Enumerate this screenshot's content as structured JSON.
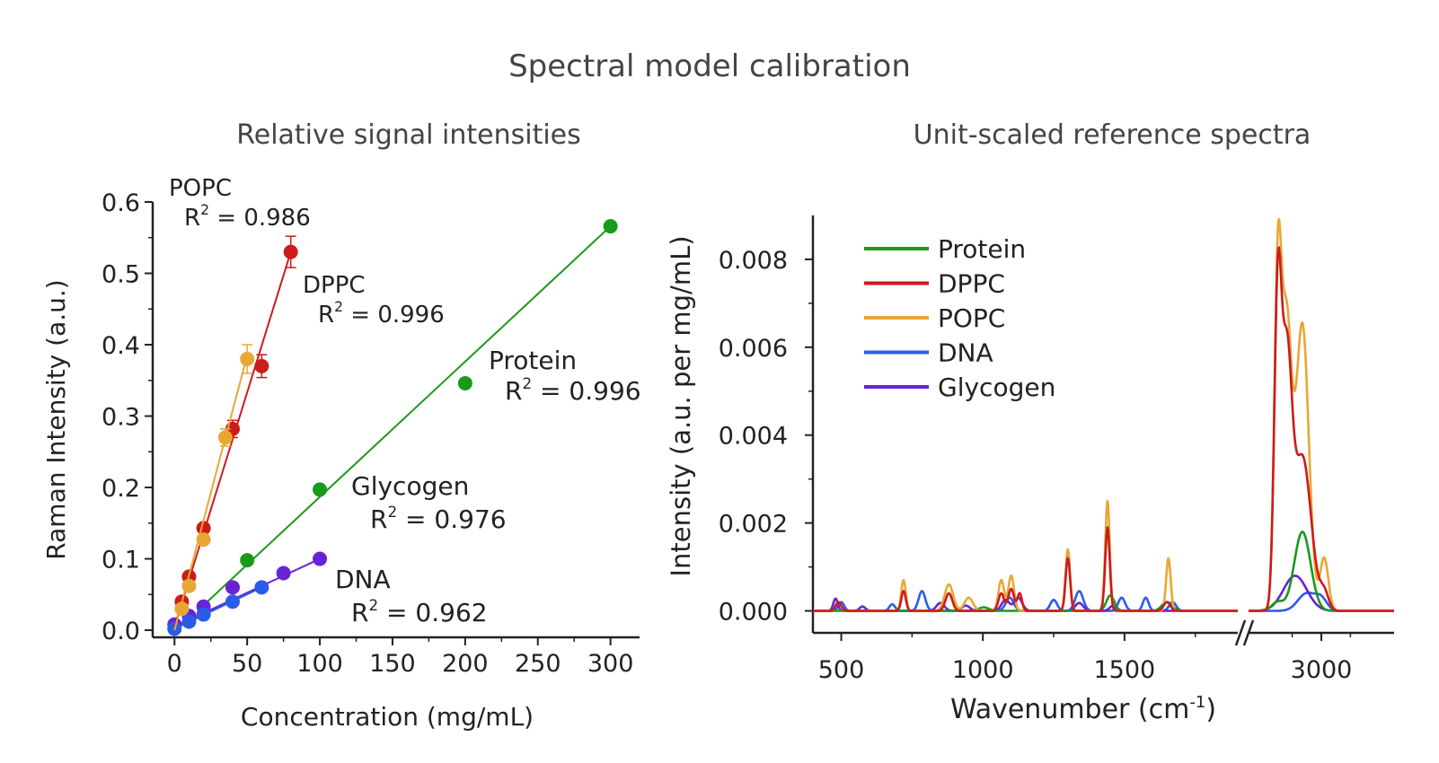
{
  "figure": {
    "title": "Spectral model calibration"
  },
  "chart_data": [
    {
      "type": "scatter",
      "title": "Relative signal intensities",
      "xlabel": "Concentration (mg/mL)",
      "ylabel": "Raman Intensity (a.u.)",
      "xlim": [
        -15,
        320
      ],
      "ylim": [
        -0.01,
        0.6
      ],
      "xticks": [
        "0",
        "50",
        "100",
        "150",
        "200",
        "250",
        "300"
      ],
      "xtick_values": [
        0,
        50,
        100,
        150,
        200,
        250,
        300
      ],
      "yticks": [
        "0.0",
        "0.1",
        "0.2",
        "0.3",
        "0.4",
        "0.5",
        "0.6"
      ],
      "ytick_values": [
        0,
        0.1,
        0.2,
        0.3,
        0.4,
        0.5,
        0.6
      ],
      "series": [
        {
          "name": "POPC",
          "color": "#e8a735",
          "r2_label": "R",
          "r2_sup": "2",
          "r2_text": " = 0.986",
          "x": [
            5,
            10,
            20,
            35,
            50
          ],
          "y": [
            0.03,
            0.062,
            0.127,
            0.27,
            0.38
          ],
          "err": [
            0,
            0,
            0,
            0.012,
            0.02
          ],
          "fit": [
            [
              0,
              0
            ],
            [
              50,
              0.385
            ]
          ]
        },
        {
          "name": "DPPC",
          "color": "#cc1b1b",
          "r2_label": "R",
          "r2_sup": "2",
          "r2_text": " = 0.996",
          "x": [
            5,
            10,
            20,
            40,
            60,
            80
          ],
          "y": [
            0.04,
            0.075,
            0.143,
            0.282,
            0.37,
            0.53
          ],
          "err": [
            0,
            0,
            0,
            0.012,
            0.016,
            0.022
          ],
          "fit": [
            [
              0,
              0.005
            ],
            [
              80,
              0.53
            ]
          ]
        },
        {
          "name": "Protein",
          "color": "#1a9a1a",
          "r2_label": "R",
          "r2_sup": "2",
          "r2_text": " = 0.996",
          "x": [
            50,
            100,
            200,
            300
          ],
          "y": [
            0.098,
            0.197,
            0.346,
            0.566
          ],
          "err": [
            0,
            0,
            0,
            0
          ],
          "fit": [
            [
              20,
              0.035
            ],
            [
              300,
              0.566
            ]
          ]
        },
        {
          "name": "Glycogen",
          "color": "#6a22d6",
          "r2_label": "R",
          "r2_sup": "2",
          "r2_text": " = 0.976",
          "x": [
            0,
            10,
            20,
            40,
            75,
            100
          ],
          "y": [
            0.008,
            0.02,
            0.033,
            0.06,
            0.08,
            0.1
          ],
          "err": [
            0,
            0,
            0,
            0,
            0,
            0
          ],
          "fit": [
            [
              0,
              0.005
            ],
            [
              100,
              0.1
            ]
          ]
        },
        {
          "name": "DNA",
          "color": "#2b5ce8",
          "r2_label": "R",
          "r2_sup": "2",
          "r2_text": " = 0.962",
          "x": [
            0,
            10,
            20,
            40,
            60
          ],
          "y": [
            0.002,
            0.012,
            0.022,
            0.04,
            0.06
          ],
          "err": [
            0,
            0,
            0,
            0,
            0
          ],
          "fit": [
            [
              0,
              0.002
            ],
            [
              60,
              0.06
            ]
          ]
        }
      ]
    },
    {
      "type": "line",
      "title": "Unit-scaled reference spectra",
      "xlabel": "Wavenumber (cm",
      "xlabel_sup": "-1",
      "xlabel_end": ")",
      "ylabel": "Intensity (a.u. per mg/mL)",
      "ylim": [
        -0.0005,
        0.009
      ],
      "xticks": [
        "500",
        "1000",
        "1500",
        "3000"
      ],
      "xtick_values": [
        500,
        1000,
        1500,
        3000
      ],
      "yticks": [
        "0.000",
        "0.002",
        "0.004",
        "0.006",
        "0.008"
      ],
      "ytick_values": [
        0,
        0.002,
        0.004,
        0.006,
        0.008
      ],
      "segments": [
        [
          400,
          1900
        ],
        [
          2750,
          3250
        ]
      ],
      "legend_position": "top-left",
      "series": [
        {
          "name": "Protein",
          "color": "#1a9a1a",
          "peaks": [
            [
              1003,
              8e-05,
              18
            ],
            [
              1450,
              0.00035,
              14
            ],
            [
              1650,
              0.0002,
              18
            ],
            [
              2850,
              0.0002,
              20
            ],
            [
              2935,
              0.0018,
              28
            ]
          ]
        },
        {
          "name": "DPPC",
          "color": "#cc1b1b",
          "peaks": [
            [
              490,
              0.0002,
              10
            ],
            [
              720,
              0.00045,
              8
            ],
            [
              880,
              0.0004,
              12
            ],
            [
              1065,
              0.0004,
              10
            ],
            [
              1100,
              0.0005,
              10
            ],
            [
              1130,
              0.0004,
              8
            ],
            [
              1300,
              0.0012,
              8
            ],
            [
              1440,
              0.0019,
              8
            ],
            [
              1650,
              0.0002,
              12
            ],
            [
              2725,
              0.0003,
              8
            ],
            [
              2850,
              0.0066,
              12
            ],
            [
              2880,
              0.0055,
              18
            ],
            [
              2935,
              0.0035,
              30
            ],
            [
              3010,
              0.0004,
              15
            ]
          ]
        },
        {
          "name": "POPC",
          "color": "#e8a735",
          "peaks": [
            [
              490,
              0.0002,
              10
            ],
            [
              720,
              0.0007,
              8
            ],
            [
              880,
              0.0006,
              15
            ],
            [
              950,
              0.0003,
              15
            ],
            [
              1065,
              0.0007,
              10
            ],
            [
              1100,
              0.0008,
              10
            ],
            [
              1300,
              0.0014,
              8
            ],
            [
              1440,
              0.0025,
              8
            ],
            [
              1655,
              0.0012,
              8
            ],
            [
              2725,
              0.0003,
              8
            ],
            [
              2850,
              0.007,
              12
            ],
            [
              2880,
              0.0065,
              18
            ],
            [
              2935,
              0.0065,
              22
            ],
            [
              3010,
              0.0012,
              14
            ]
          ]
        },
        {
          "name": "DNA",
          "color": "#2b5ce8",
          "peaks": [
            [
              500,
              0.0002,
              10
            ],
            [
              680,
              0.00015,
              10
            ],
            [
              785,
              0.00045,
              12
            ],
            [
              1095,
              0.0003,
              14
            ],
            [
              1250,
              0.00025,
              12
            ],
            [
              1340,
              0.00045,
              14
            ],
            [
              1490,
              0.0003,
              12
            ],
            [
              1575,
              0.0003,
              10
            ],
            [
              1670,
              0.0002,
              12
            ],
            [
              2950,
              0.0004,
              30
            ],
            [
              3000,
              0.00025,
              20
            ]
          ]
        },
        {
          "name": "Glycogen",
          "color": "#6a22d6",
          "peaks": [
            [
              480,
              0.00028,
              8
            ],
            [
              575,
              0.0001,
              10
            ],
            [
              850,
              0.00018,
              14
            ],
            [
              940,
              0.00012,
              14
            ],
            [
              1080,
              0.00025,
              14
            ],
            [
              1125,
              0.0003,
              14
            ],
            [
              1340,
              0.00018,
              14
            ],
            [
              1460,
              0.00012,
              12
            ],
            [
              2910,
              0.0008,
              40
            ]
          ]
        }
      ]
    }
  ]
}
